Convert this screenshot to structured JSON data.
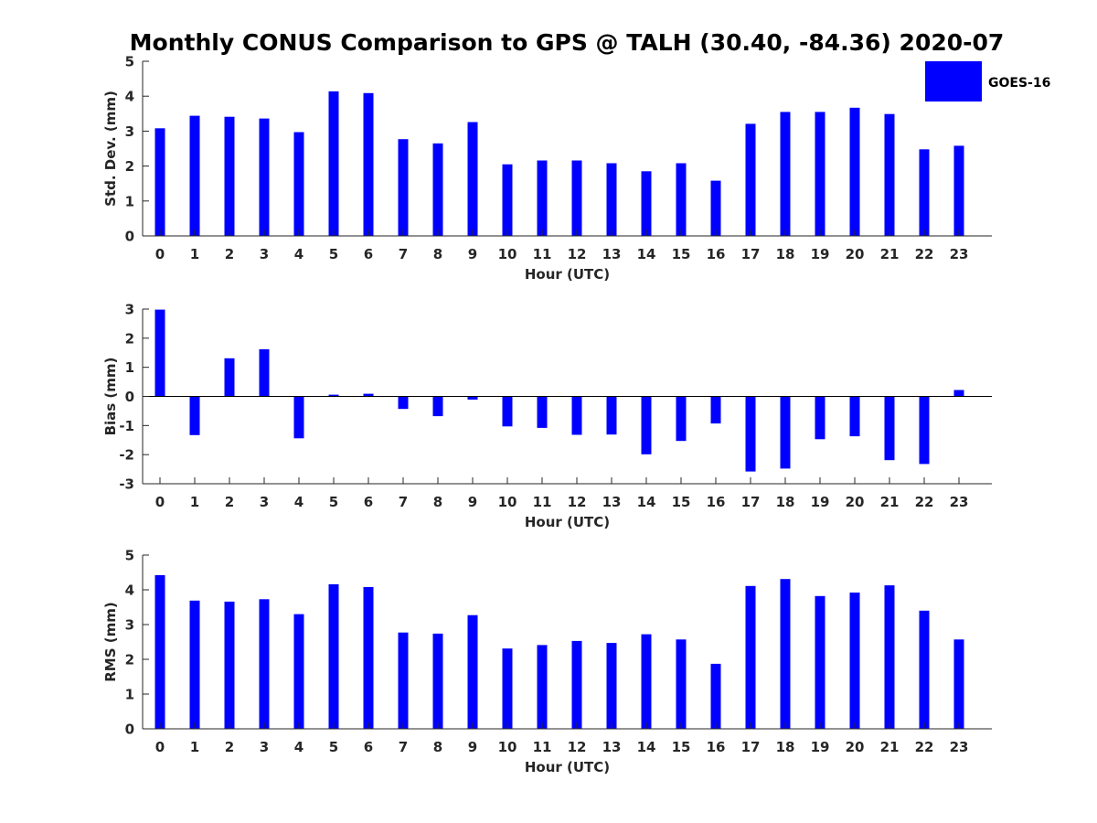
{
  "figure": {
    "title": "Monthly CONUS Comparison to GPS @ TALH (30.40, -84.36) 2020-07",
    "legend": {
      "label": "GOES-16",
      "color": "#0000ff",
      "placement": "top-right"
    }
  },
  "chart_data": [
    {
      "type": "bar",
      "name": "std-dev",
      "categories": [
        "0",
        "1",
        "2",
        "3",
        "4",
        "5",
        "6",
        "7",
        "8",
        "9",
        "10",
        "11",
        "12",
        "13",
        "14",
        "15",
        "16",
        "17",
        "18",
        "19",
        "20",
        "21",
        "22",
        "23"
      ],
      "series": [
        {
          "name": "GOES-16",
          "color": "#0000ff",
          "values": [
            3.08,
            3.44,
            3.41,
            3.36,
            2.97,
            4.14,
            4.09,
            2.77,
            2.65,
            3.26,
            2.05,
            2.16,
            2.16,
            2.08,
            1.85,
            2.08,
            1.58,
            3.21,
            3.55,
            3.55,
            3.67,
            3.49,
            2.48,
            2.58
          ]
        }
      ],
      "xlabel": "Hour (UTC)",
      "ylabel": "Std. Dev. (mm)",
      "ylim": [
        0,
        5
      ],
      "yticks": [
        "0",
        "1",
        "2",
        "3",
        "4",
        "5"
      ],
      "grid": false
    },
    {
      "type": "bar",
      "name": "bias",
      "categories": [
        "0",
        "1",
        "2",
        "3",
        "4",
        "5",
        "6",
        "7",
        "8",
        "9",
        "10",
        "11",
        "12",
        "13",
        "14",
        "15",
        "16",
        "17",
        "18",
        "19",
        "20",
        "21",
        "22",
        "23"
      ],
      "series": [
        {
          "name": "GOES-16",
          "color": "#0000ff",
          "values": [
            2.98,
            -1.33,
            1.31,
            1.62,
            -1.44,
            0.06,
            0.09,
            -0.43,
            -0.68,
            -0.11,
            -1.03,
            -1.08,
            -1.32,
            -1.31,
            -1.99,
            -1.53,
            -0.93,
            -2.58,
            -2.48,
            -1.47,
            -1.37,
            -2.19,
            -2.32,
            0.22
          ]
        }
      ],
      "xlabel": "Hour (UTC)",
      "ylabel": "Bias (mm)",
      "ylim": [
        -3,
        3
      ],
      "yticks": [
        "-3",
        "-2",
        "-1",
        "0",
        "1",
        "2",
        "3"
      ],
      "grid": false
    },
    {
      "type": "bar",
      "name": "rms",
      "categories": [
        "0",
        "1",
        "2",
        "3",
        "4",
        "5",
        "6",
        "7",
        "8",
        "9",
        "10",
        "11",
        "12",
        "13",
        "14",
        "15",
        "16",
        "17",
        "18",
        "19",
        "20",
        "21",
        "22",
        "23"
      ],
      "series": [
        {
          "name": "GOES-16",
          "color": "#0000ff",
          "values": [
            4.42,
            3.69,
            3.66,
            3.73,
            3.3,
            4.16,
            4.08,
            2.77,
            2.74,
            3.27,
            2.31,
            2.41,
            2.53,
            2.47,
            2.72,
            2.57,
            1.87,
            4.11,
            4.31,
            3.82,
            3.92,
            4.13,
            3.4,
            2.57
          ]
        }
      ],
      "xlabel": "Hour (UTC)",
      "ylabel": "RMS (mm)",
      "ylim": [
        0,
        5
      ],
      "yticks": [
        "0",
        "1",
        "2",
        "3",
        "4",
        "5"
      ],
      "grid": false
    }
  ]
}
